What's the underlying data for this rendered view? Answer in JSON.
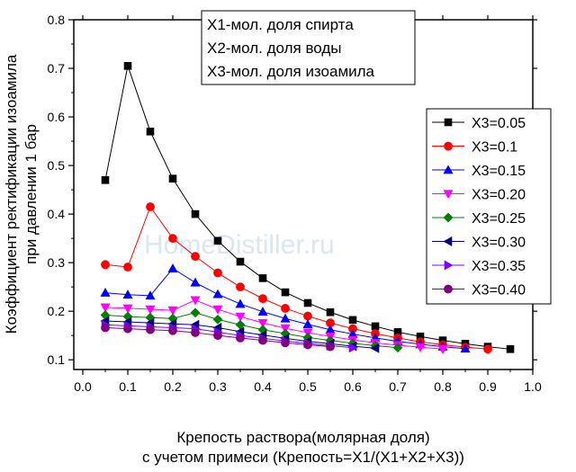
{
  "chart_data": {
    "type": "line",
    "title": "",
    "xlabel": [
      "Крепость раствора(молярная доля)",
      "с учетом примеси (Крепость=X1/(X1+X2+X3))"
    ],
    "ylabel": [
      "Коэффициент ректификации изоамила",
      "при давлении 1 бар"
    ],
    "xlim": [
      -0.02,
      1.0
    ],
    "ylim": [
      0.08,
      0.8
    ],
    "xticks": [
      "0.0",
      "0.1",
      "0.2",
      "0.3",
      "0.4",
      "0.5",
      "0.6",
      "0.7",
      "0.8",
      "0.9",
      "1.0"
    ],
    "yticks": [
      "0.1",
      "0.2",
      "0.3",
      "0.4",
      "0.5",
      "0.6",
      "0.7",
      "0.8"
    ],
    "annotations": [
      "X1-мол. доля спирта",
      "X2-мол. доля воды",
      "X3-мол. доля изоамила"
    ],
    "watermark": "HomeDistiller.ru",
    "legend_position": "right",
    "series": [
      {
        "name": "X3=0.05",
        "color": "#000000",
        "marker": "square",
        "x": [
          0.05,
          0.1,
          0.15,
          0.2,
          0.25,
          0.3,
          0.35,
          0.4,
          0.45,
          0.5,
          0.55,
          0.6,
          0.65,
          0.7,
          0.75,
          0.8,
          0.85,
          0.9,
          0.95
        ],
        "y": [
          0.47,
          0.705,
          0.57,
          0.473,
          0.4,
          0.345,
          0.302,
          0.268,
          0.239,
          0.217,
          0.198,
          0.182,
          0.169,
          0.157,
          0.148,
          0.14,
          0.133,
          0.127,
          0.122
        ]
      },
      {
        "name": "X3=0.1",
        "color": "#ff0000",
        "marker": "circle",
        "x": [
          0.05,
          0.1,
          0.15,
          0.2,
          0.25,
          0.3,
          0.35,
          0.4,
          0.45,
          0.5,
          0.55,
          0.6,
          0.65,
          0.7,
          0.75,
          0.8,
          0.85,
          0.9
        ],
        "y": [
          0.296,
          0.291,
          0.415,
          0.35,
          0.313,
          0.279,
          0.25,
          0.226,
          0.206,
          0.19,
          0.176,
          0.164,
          0.154,
          0.145,
          0.137,
          0.131,
          0.126,
          0.122
        ]
      },
      {
        "name": "X3=0.15",
        "color": "#0000ff",
        "marker": "triangle-up",
        "x": [
          0.05,
          0.1,
          0.15,
          0.2,
          0.25,
          0.3,
          0.35,
          0.4,
          0.45,
          0.5,
          0.55,
          0.6,
          0.65,
          0.7,
          0.75,
          0.8,
          0.85
        ],
        "y": [
          0.238,
          0.234,
          0.232,
          0.288,
          0.259,
          0.235,
          0.215,
          0.199,
          0.185,
          0.173,
          0.162,
          0.153,
          0.145,
          0.138,
          0.132,
          0.127,
          0.123
        ]
      },
      {
        "name": "X3=0.20",
        "color": "#ff00ff",
        "marker": "triangle-down",
        "x": [
          0.05,
          0.1,
          0.15,
          0.2,
          0.25,
          0.3,
          0.35,
          0.4,
          0.45,
          0.5,
          0.55,
          0.6,
          0.65,
          0.7,
          0.75,
          0.8
        ],
        "y": [
          0.208,
          0.206,
          0.204,
          0.202,
          0.223,
          0.204,
          0.189,
          0.176,
          0.165,
          0.156,
          0.148,
          0.141,
          0.135,
          0.13,
          0.126,
          0.122
        ]
      },
      {
        "name": "X3=0.25",
        "color": "#008000",
        "marker": "diamond",
        "x": [
          0.05,
          0.1,
          0.15,
          0.2,
          0.25,
          0.3,
          0.35,
          0.4,
          0.45,
          0.5,
          0.55,
          0.6,
          0.65,
          0.7
        ],
        "y": [
          0.192,
          0.189,
          0.187,
          0.185,
          0.197,
          0.183,
          0.172,
          0.162,
          0.154,
          0.146,
          0.14,
          0.134,
          0.129,
          0.125
        ]
      },
      {
        "name": "X3=0.30",
        "color": "#000080",
        "marker": "triangle-left",
        "x": [
          0.05,
          0.1,
          0.15,
          0.2,
          0.25,
          0.3,
          0.35,
          0.4,
          0.45,
          0.5,
          0.55,
          0.6,
          0.65
        ],
        "y": [
          0.18,
          0.178,
          0.176,
          0.174,
          0.172,
          0.166,
          0.158,
          0.151,
          0.144,
          0.138,
          0.133,
          0.128,
          0.124
        ]
      },
      {
        "name": "X3=0.35",
        "color": "#8000ff",
        "marker": "triangle-right",
        "x": [
          0.05,
          0.1,
          0.15,
          0.2,
          0.25,
          0.3,
          0.35,
          0.4,
          0.45,
          0.5,
          0.55,
          0.6
        ],
        "y": [
          0.172,
          0.17,
          0.168,
          0.166,
          0.164,
          0.157,
          0.15,
          0.144,
          0.139,
          0.134,
          0.129,
          0.125
        ]
      },
      {
        "name": "X3=0.40",
        "color": "#800080",
        "marker": "circle",
        "x": [
          0.05,
          0.1,
          0.15,
          0.2,
          0.25,
          0.3,
          0.35,
          0.4,
          0.45,
          0.5,
          0.55
        ],
        "y": [
          0.166,
          0.164,
          0.162,
          0.16,
          0.156,
          0.15,
          0.145,
          0.14,
          0.135,
          0.131,
          0.127
        ]
      }
    ]
  }
}
